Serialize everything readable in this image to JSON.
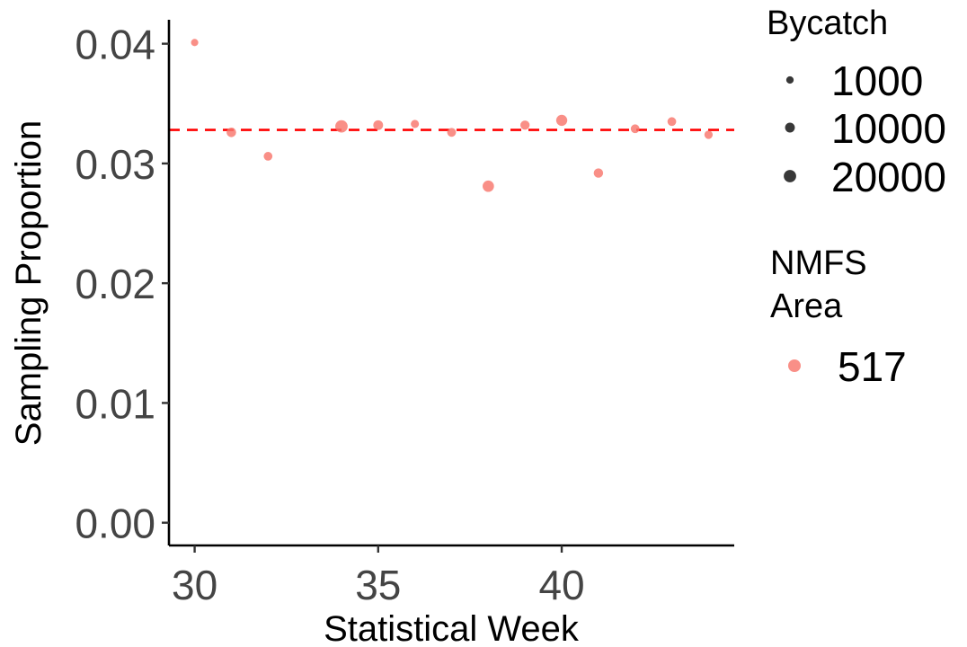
{
  "chart_data": {
    "type": "scatter",
    "title": "",
    "xlabel": "Statistical Week",
    "ylabel": "Sampling Proportion",
    "xlim": [
      29.3,
      44.7
    ],
    "ylim": [
      -0.0019,
      0.042
    ],
    "xticks": [
      30,
      35,
      40
    ],
    "xtick_labels": [
      "30",
      "35",
      "40"
    ],
    "yticks": [
      0.0,
      0.01,
      0.02,
      0.03,
      0.04
    ],
    "ytick_labels": [
      "0.00",
      "0.01",
      "0.02",
      "0.03",
      "0.04"
    ],
    "grid": false,
    "point_color": "#F8766D",
    "reference_line": {
      "y": 0.0328,
      "style": "dashed",
      "color": "#FF0000"
    },
    "series": [
      {
        "name": "517",
        "points": [
          {
            "x": 30,
            "y": 0.0401,
            "bycatch": 300
          },
          {
            "x": 31,
            "y": 0.0326,
            "bycatch": 9000
          },
          {
            "x": 32,
            "y": 0.0306,
            "bycatch": 6000
          },
          {
            "x": 34,
            "y": 0.0331,
            "bycatch": 20000
          },
          {
            "x": 35,
            "y": 0.0332,
            "bycatch": 10000
          },
          {
            "x": 36,
            "y": 0.0333,
            "bycatch": 3800
          },
          {
            "x": 37,
            "y": 0.0326,
            "bycatch": 6500
          },
          {
            "x": 38,
            "y": 0.0281,
            "bycatch": 16000
          },
          {
            "x": 39,
            "y": 0.0332,
            "bycatch": 8000
          },
          {
            "x": 40,
            "y": 0.0336,
            "bycatch": 15000
          },
          {
            "x": 41,
            "y": 0.0292,
            "bycatch": 8500
          },
          {
            "x": 42,
            "y": 0.0329,
            "bycatch": 6000
          },
          {
            "x": 43,
            "y": 0.0335,
            "bycatch": 6000
          },
          {
            "x": 44,
            "y": 0.0324,
            "bycatch": 4500
          }
        ]
      }
    ],
    "legend": {
      "placement": "right",
      "size_title": "Bycatch",
      "size_entries": [
        {
          "label": "1000",
          "value": 1000
        },
        {
          "label": "10000",
          "value": 10000
        },
        {
          "label": "20000",
          "value": 20000
        }
      ],
      "color_title_lines": [
        "NMFS",
        "Area"
      ],
      "color_entries": [
        {
          "label": "517",
          "color": "#F8766D"
        }
      ]
    }
  }
}
